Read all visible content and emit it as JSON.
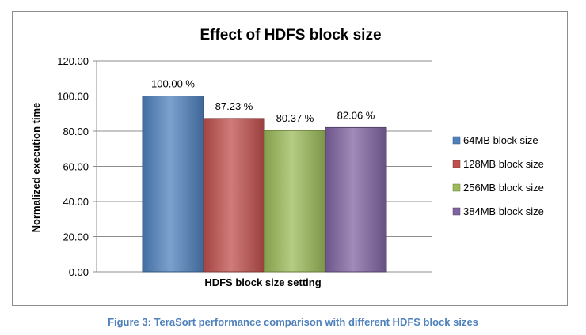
{
  "chart_data": {
    "type": "bar",
    "title": "Effect of HDFS block size",
    "xlabel": "HDFS block size setting",
    "ylabel": "Normalized execution time",
    "ylim": [
      0,
      120
    ],
    "yticks": [
      "0.00",
      "20.00",
      "40.00",
      "60.00",
      "80.00",
      "100.00",
      "120.00"
    ],
    "grid": true,
    "legend_position": "right",
    "categories": [
      "HDFS block size setting"
    ],
    "series": [
      {
        "name": "64MB block size",
        "value": 100.0,
        "label": "100.00 %",
        "color": "#4f81bd"
      },
      {
        "name": "128MB block size",
        "value": 87.23,
        "label": "87.23 %",
        "color": "#c0504d"
      },
      {
        "name": "256MB block size",
        "value": 80.37,
        "label": "80.37 %",
        "color": "#9bbb59"
      },
      {
        "name": "384MB block size",
        "value": 82.06,
        "label": "82.06 %",
        "color": "#8064a2"
      }
    ]
  },
  "caption": "Figure 3: TeraSort performance comparison with different HDFS block sizes"
}
